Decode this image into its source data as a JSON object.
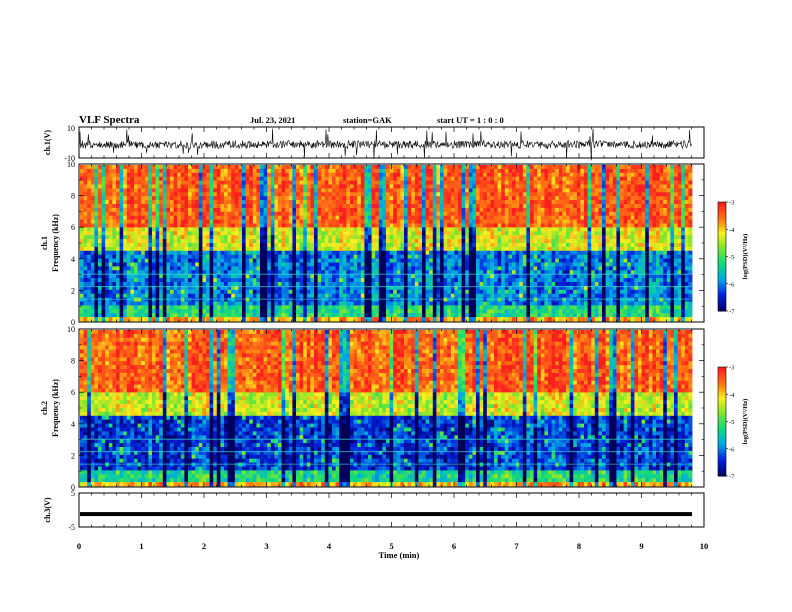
{
  "header": {
    "title": "VLF Spectra",
    "date": "Jul. 23, 2021",
    "station": "station=GAK",
    "start_ut": "start UT = 1 : 0 : 0"
  },
  "colors": {
    "spectrogram_low": "#000080",
    "spectrogram_mid": "#22dd44",
    "spectrogram_high": "#ff2a1a",
    "trace": "#000000"
  },
  "chart_data": [
    {
      "type": "line",
      "name": "ch1-waveform",
      "ylabel": "ch.1(V)",
      "ylim": [
        -10,
        10
      ],
      "yticks": [
        "10",
        "-10"
      ],
      "xlim": [
        0,
        10
      ],
      "description_level": "noisy waveform centered near 0 V with spikes up to ±10 V"
    },
    {
      "type": "heatmap",
      "name": "ch1-spectrogram",
      "ylabel_line1": "ch.1",
      "ylabel_line2": "Frequency (kHz)",
      "ylim": [
        0,
        10
      ],
      "yticks": [
        "0",
        "2",
        "4",
        "6",
        "8",
        "10"
      ],
      "xlim": [
        0,
        10
      ],
      "colorbar": {
        "label": "log(PSD)(V²/Hz)",
        "range": [
          -7,
          -3
        ],
        "ticks": [
          "-3",
          "-4",
          "-5",
          "-6",
          "-7"
        ]
      }
    },
    {
      "type": "heatmap",
      "name": "ch2-spectrogram",
      "ylabel_line1": "ch.2",
      "ylabel_line2": "Frequency (kHz)",
      "ylim": [
        0,
        10
      ],
      "yticks": [
        "0",
        "2",
        "4",
        "6",
        "8",
        "10"
      ],
      "xlim": [
        0,
        10
      ],
      "colorbar": {
        "label": "log(PSD)(V²/Hz)",
        "range": [
          -7,
          -3
        ],
        "ticks": [
          "-3",
          "-4",
          "-5",
          "-6",
          "-7"
        ]
      }
    },
    {
      "type": "line",
      "name": "ch3-waveform",
      "ylabel": "ch.3(V)",
      "ylim": [
        -5,
        5
      ],
      "yticks": [
        "5",
        "-5"
      ],
      "xlim": [
        0,
        10
      ],
      "level": -1.2
    }
  ],
  "xaxis": {
    "label": "Time (min)",
    "ticks": [
      "0",
      "1",
      "2",
      "3",
      "4",
      "5",
      "6",
      "7",
      "8",
      "9",
      "10"
    ]
  }
}
